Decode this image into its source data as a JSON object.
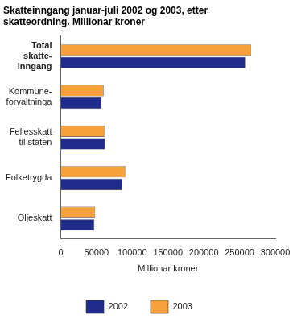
{
  "chart_data": {
    "type": "bar",
    "orientation": "horizontal",
    "title": [
      "Skatteinngang januar-juli 2002 og 2003, etter",
      "skatteordning. Millionar kroner"
    ],
    "x_label": "Millionar kroner",
    "categories": [
      "Total\nskatte-\ninngang",
      "Kommune-\nforvaltninga",
      "Fellesskatt\ntil staten",
      "Folketrygda",
      "Oljeskatt"
    ],
    "series": [
      {
        "name": "2002",
        "color": "#1f2c8c",
        "values": [
          258000,
          57000,
          62000,
          86000,
          47000
        ]
      },
      {
        "name": "2003",
        "color": "#f7a13c",
        "values": [
          266000,
          60000,
          61000,
          91000,
          48000
        ]
      }
    ],
    "xlim": [
      0,
      300000
    ],
    "xticks": [
      0,
      50000,
      100000,
      150000,
      200000,
      250000,
      300000
    ],
    "grid": false,
    "legend": "bottom"
  }
}
